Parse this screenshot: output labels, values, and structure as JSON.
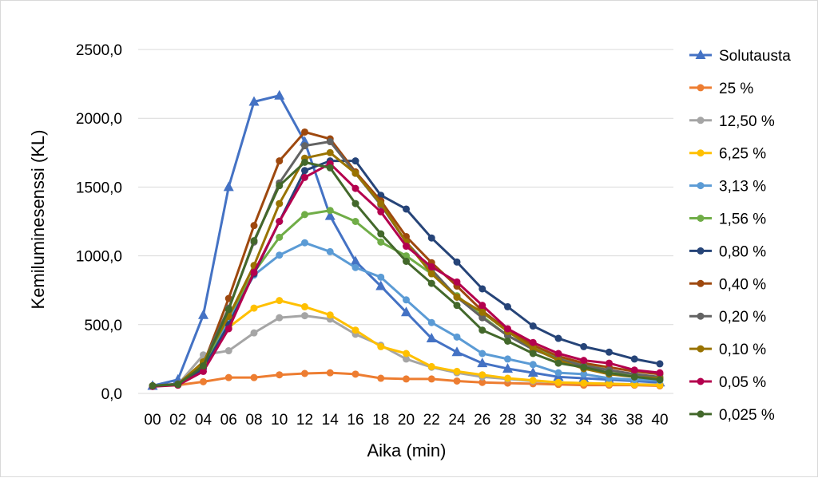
{
  "chart_data": {
    "type": "line",
    "title": "",
    "xlabel": "Aika (min)",
    "ylabel": "Kemiluminesenssi (KL)",
    "ylim": [
      0,
      2500
    ],
    "yticks": [
      "0,0",
      "500,0",
      "1000,0",
      "1500,0",
      "2000,0",
      "2500,0"
    ],
    "yticks_values": [
      0,
      500,
      1000,
      1500,
      2000,
      2500
    ],
    "grid": true,
    "legend_position": "right",
    "categories": [
      "00",
      "02",
      "04",
      "06",
      "08",
      "10",
      "12",
      "14",
      "16",
      "18",
      "20",
      "22",
      "24",
      "26",
      "28",
      "30",
      "32",
      "34",
      "36",
      "38",
      "40"
    ],
    "series": [
      {
        "name": "Solutausta",
        "color": "#4472c4",
        "marker": "triangle",
        "values": [
          55,
          100,
          570,
          1500,
          2120,
          2165,
          1830,
          1290,
          960,
          780,
          590,
          400,
          300,
          220,
          180,
          150,
          120,
          110,
          100,
          90,
          80
        ]
      },
      {
        "name": "25 %",
        "color": "#ed7d31",
        "marker": "circle",
        "values": [
          55,
          60,
          85,
          115,
          115,
          135,
          145,
          150,
          140,
          110,
          105,
          105,
          90,
          80,
          75,
          70,
          65,
          60,
          60,
          60,
          55
        ]
      },
      {
        "name": "12,50 %",
        "color": "#a5a5a5",
        "marker": "circle",
        "values": [
          55,
          65,
          280,
          310,
          440,
          550,
          565,
          540,
          430,
          350,
          250,
          190,
          150,
          120,
          105,
          90,
          80,
          75,
          70,
          65,
          65
        ]
      },
      {
        "name": "6,25 %",
        "color": "#ffc000",
        "marker": "circle",
        "values": [
          55,
          65,
          200,
          480,
          620,
          675,
          630,
          570,
          460,
          340,
          290,
          195,
          160,
          135,
          110,
          95,
          80,
          75,
          70,
          65,
          60
        ]
      },
      {
        "name": "3,13 %",
        "color": "#5b9bd5",
        "marker": "circle",
        "values": [
          55,
          65,
          190,
          540,
          860,
          1005,
          1095,
          1030,
          915,
          845,
          680,
          515,
          410,
          290,
          250,
          210,
          150,
          140,
          110,
          100,
          95
        ]
      },
      {
        "name": "1,56 %",
        "color": "#70ad47",
        "marker": "circle",
        "values": [
          55,
          65,
          200,
          560,
          880,
          1135,
          1300,
          1330,
          1250,
          1100,
          1000,
          870,
          710,
          560,
          420,
          330,
          260,
          210,
          170,
          130,
          110
        ]
      },
      {
        "name": "0,80 %",
        "color": "#264478",
        "marker": "circle",
        "values": [
          55,
          65,
          180,
          500,
          870,
          1250,
          1620,
          1690,
          1690,
          1440,
          1340,
          1130,
          955,
          760,
          630,
          490,
          400,
          340,
          300,
          250,
          215
        ]
      },
      {
        "name": "0,40 %",
        "color": "#9e480e",
        "marker": "circle",
        "values": [
          55,
          65,
          210,
          690,
          1220,
          1690,
          1900,
          1850,
          1610,
          1400,
          1140,
          950,
          780,
          600,
          460,
          350,
          270,
          220,
          190,
          160,
          140
        ]
      },
      {
        "name": "0,20 %",
        "color": "#636363",
        "marker": "circle",
        "values": [
          55,
          70,
          220,
          620,
          1100,
          1530,
          1800,
          1830,
          1600,
          1370,
          1100,
          900,
          700,
          550,
          420,
          320,
          250,
          200,
          170,
          140,
          120
        ]
      },
      {
        "name": "0,10 %",
        "color": "#997300",
        "marker": "circle",
        "values": [
          55,
          65,
          230,
          560,
          930,
          1380,
          1710,
          1750,
          1600,
          1380,
          1100,
          870,
          700,
          590,
          450,
          330,
          240,
          180,
          140,
          120,
          110
        ]
      },
      {
        "name": "0,05 %",
        "color": "#b4004e",
        "marker": "circle",
        "values": [
          50,
          60,
          160,
          470,
          880,
          1250,
          1570,
          1670,
          1490,
          1320,
          1070,
          920,
          810,
          640,
          470,
          370,
          290,
          240,
          220,
          170,
          150
        ]
      },
      {
        "name": "0,025 %",
        "color": "#43682b",
        "marker": "circle",
        "values": [
          55,
          65,
          200,
          610,
          1110,
          1510,
          1680,
          1640,
          1380,
          1160,
          960,
          800,
          640,
          460,
          380,
          290,
          220,
          190,
          150,
          120,
          100
        ]
      }
    ]
  }
}
